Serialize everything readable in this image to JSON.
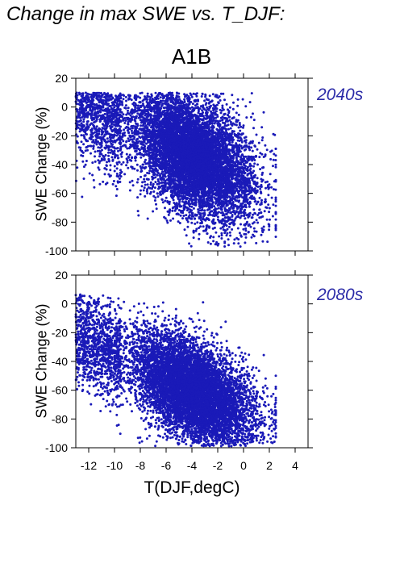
{
  "page_title": "Change in max SWE vs. T_DJF:",
  "scenario": "A1B",
  "xlabel": "T(DJF,degC)",
  "ylabel": "SWE Change (%)",
  "colors": {
    "points": "#1a1ab8",
    "period_label": "#2b2ba8"
  },
  "chart_data": [
    {
      "type": "scatter",
      "title": "2040s",
      "ylabel": "SWE Change (%)",
      "xlabel": "",
      "xlim": [
        -13,
        5
      ],
      "ylim": [
        -100,
        20
      ],
      "xticks": [
        -12,
        -10,
        -8,
        -6,
        -4,
        -2,
        0,
        2,
        4
      ],
      "yticks": [
        -100,
        -80,
        -60,
        -40,
        -20,
        0,
        20
      ],
      "show_x_tick_labels": false,
      "point_cloud": {
        "n": 9000,
        "seed": 11,
        "x_range": [
          -13,
          2.5
        ],
        "y_min": -97,
        "y_max": 10
      }
    },
    {
      "type": "scatter",
      "title": "2080s",
      "ylabel": "SWE Change (%)",
      "xlabel": "T(DJF,degC)",
      "xlim": [
        -13,
        5
      ],
      "ylim": [
        -100,
        20
      ],
      "xticks": [
        -12,
        -10,
        -8,
        -6,
        -4,
        -2,
        0,
        2,
        4
      ],
      "yticks": [
        -100,
        -80,
        -60,
        -40,
        -20,
        0,
        20
      ],
      "show_x_tick_labels": true,
      "point_cloud": {
        "n": 9000,
        "seed": 29,
        "x_range": [
          -13,
          2.5
        ],
        "y_min": -99,
        "y_max": 7
      }
    }
  ]
}
